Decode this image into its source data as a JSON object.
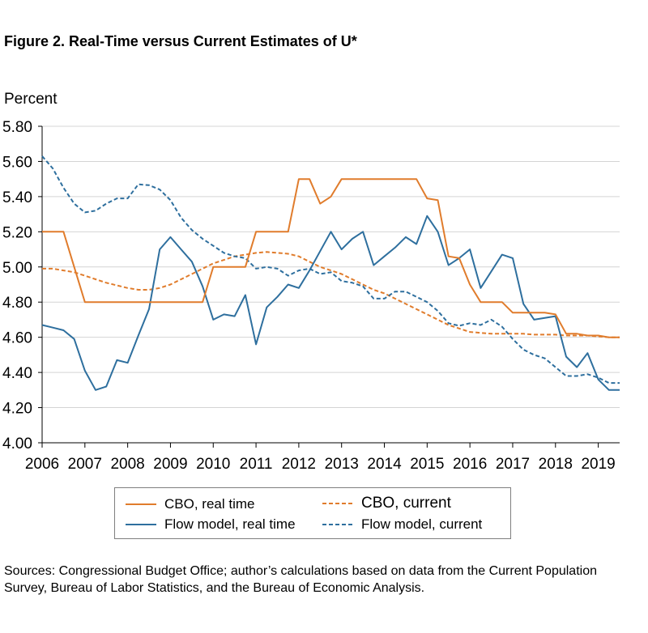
{
  "title": "Figure 2. Real-Time versus Current Estimates of U*",
  "sources": "Sources: Congressional Budget Office; author’s calculations based on data from the Current Population Survey, Bureau of Labor Statistics, and the Bureau of Economic Analysis.",
  "chart_data": {
    "type": "line",
    "ylabel": "Percent",
    "ylim": [
      4.0,
      5.8
    ],
    "xlim": [
      2006,
      2019.5
    ],
    "yticks": [
      "4.00",
      "4.20",
      "4.40",
      "4.60",
      "4.80",
      "5.00",
      "5.20",
      "5.40",
      "5.60",
      "5.80"
    ],
    "xticks": [
      "2006",
      "2007",
      "2008",
      "2009",
      "2010",
      "2011",
      "2012",
      "2013",
      "2014",
      "2015",
      "2016",
      "2017",
      "2018",
      "2019"
    ],
    "grid": "horizontal",
    "legend_position": "bottom",
    "series": [
      {
        "name": "CBO, real time",
        "color": "#e07c2c",
        "dash": "solid",
        "x": [
          2006.0,
          2006.25,
          2006.5,
          2006.75,
          2007.0,
          2007.25,
          2007.5,
          2007.75,
          2008.0,
          2008.25,
          2008.5,
          2008.75,
          2009.0,
          2009.25,
          2009.5,
          2009.75,
          2010.0,
          2010.25,
          2010.5,
          2010.75,
          2011.0,
          2011.25,
          2011.5,
          2011.75,
          2012.0,
          2012.25,
          2012.5,
          2012.75,
          2013.0,
          2013.25,
          2013.5,
          2013.75,
          2014.0,
          2014.25,
          2014.5,
          2014.75,
          2015.0,
          2015.25,
          2015.5,
          2015.75,
          2016.0,
          2016.25,
          2016.5,
          2016.75,
          2017.0,
          2017.25,
          2017.5,
          2017.75,
          2018.0,
          2018.25,
          2018.5,
          2018.75,
          2019.0,
          2019.25,
          2019.5
        ],
        "y": [
          5.2,
          5.2,
          5.2,
          5.0,
          4.8,
          4.8,
          4.8,
          4.8,
          4.8,
          4.8,
          4.8,
          4.8,
          4.8,
          4.8,
          4.8,
          4.8,
          5.0,
          5.0,
          5.0,
          5.0,
          5.2,
          5.2,
          5.2,
          5.2,
          5.5,
          5.5,
          5.36,
          5.4,
          5.5,
          5.5,
          5.5,
          5.5,
          5.5,
          5.5,
          5.5,
          5.5,
          5.39,
          5.38,
          5.06,
          5.05,
          4.9,
          4.8,
          4.8,
          4.8,
          4.74,
          4.74,
          4.74,
          4.74,
          4.73,
          4.62,
          4.62,
          4.61,
          4.61,
          4.6,
          4.6
        ]
      },
      {
        "name": "CBO, current",
        "color": "#e07c2c",
        "dash": "dashed",
        "x": [
          2006.0,
          2006.25,
          2006.5,
          2006.75,
          2007.0,
          2007.25,
          2007.5,
          2007.75,
          2008.0,
          2008.25,
          2008.5,
          2008.75,
          2009.0,
          2009.25,
          2009.5,
          2009.75,
          2010.0,
          2010.25,
          2010.5,
          2010.75,
          2011.0,
          2011.25,
          2011.5,
          2011.75,
          2012.0,
          2012.25,
          2012.5,
          2012.75,
          2013.0,
          2013.25,
          2013.5,
          2013.75,
          2014.0,
          2014.25,
          2014.5,
          2014.75,
          2015.0,
          2015.25,
          2015.5,
          2015.75,
          2016.0,
          2016.25,
          2016.5,
          2016.75,
          2017.0,
          2017.25,
          2017.5,
          2017.75,
          2018.0,
          2018.25,
          2018.5,
          2018.75,
          2019.0,
          2019.25,
          2019.5
        ],
        "y": [
          4.99,
          4.99,
          4.98,
          4.97,
          4.95,
          4.93,
          4.91,
          4.895,
          4.88,
          4.87,
          4.87,
          4.88,
          4.9,
          4.93,
          4.96,
          4.99,
          5.02,
          5.04,
          5.06,
          5.07,
          5.08,
          5.085,
          5.08,
          5.075,
          5.06,
          5.03,
          5.0,
          4.98,
          4.96,
          4.93,
          4.9,
          4.87,
          4.85,
          4.82,
          4.79,
          4.76,
          4.73,
          4.7,
          4.67,
          4.65,
          4.63,
          4.625,
          4.62,
          4.62,
          4.62,
          4.62,
          4.615,
          4.615,
          4.615,
          4.61,
          4.61,
          4.61,
          4.605,
          4.6,
          4.6
        ]
      },
      {
        "name": "Flow model, real time",
        "color": "#2e6f9e",
        "dash": "solid",
        "x": [
          2006.0,
          2006.25,
          2006.5,
          2006.75,
          2007.0,
          2007.25,
          2007.5,
          2007.75,
          2008.0,
          2008.25,
          2008.5,
          2008.75,
          2009.0,
          2009.25,
          2009.5,
          2009.75,
          2010.0,
          2010.25,
          2010.5,
          2010.75,
          2011.0,
          2011.25,
          2011.5,
          2011.75,
          2012.0,
          2012.25,
          2012.5,
          2012.75,
          2013.0,
          2013.25,
          2013.5,
          2013.75,
          2014.0,
          2014.25,
          2014.5,
          2014.75,
          2015.0,
          2015.25,
          2015.5,
          2015.75,
          2016.0,
          2016.25,
          2016.5,
          2016.75,
          2017.0,
          2017.25,
          2017.5,
          2017.75,
          2018.0,
          2018.25,
          2018.5,
          2018.75,
          2019.0,
          2019.25,
          2019.5
        ],
        "y": [
          4.67,
          4.655,
          4.64,
          4.59,
          4.41,
          4.3,
          4.32,
          4.47,
          4.455,
          4.61,
          4.76,
          5.1,
          5.17,
          5.1,
          5.03,
          4.89,
          4.7,
          4.73,
          4.72,
          4.84,
          4.56,
          4.77,
          4.83,
          4.9,
          4.88,
          4.98,
          5.09,
          5.2,
          5.1,
          5.16,
          5.2,
          5.01,
          5.06,
          5.11,
          5.17,
          5.13,
          5.29,
          5.2,
          5.01,
          5.05,
          5.1,
          4.88,
          4.975,
          5.07,
          5.05,
          4.79,
          4.7,
          4.71,
          4.72,
          4.49,
          4.43,
          4.51,
          4.36,
          4.3,
          4.3
        ]
      },
      {
        "name": "Flow model, current",
        "color": "#2e6f9e",
        "dash": "dashed",
        "x": [
          2006.0,
          2006.25,
          2006.5,
          2006.75,
          2007.0,
          2007.25,
          2007.5,
          2007.75,
          2008.0,
          2008.25,
          2008.5,
          2008.75,
          2009.0,
          2009.25,
          2009.5,
          2009.75,
          2010.0,
          2010.25,
          2010.5,
          2010.75,
          2011.0,
          2011.25,
          2011.5,
          2011.75,
          2012.0,
          2012.25,
          2012.5,
          2012.75,
          2013.0,
          2013.25,
          2013.5,
          2013.75,
          2014.0,
          2014.25,
          2014.5,
          2014.75,
          2015.0,
          2015.25,
          2015.5,
          2015.75,
          2016.0,
          2016.25,
          2016.5,
          2016.75,
          2017.0,
          2017.25,
          2017.5,
          2017.75,
          2018.0,
          2018.25,
          2018.5,
          2018.75,
          2019.0,
          2019.25,
          2019.5
        ],
        "y": [
          5.63,
          5.56,
          5.45,
          5.36,
          5.31,
          5.32,
          5.36,
          5.39,
          5.39,
          5.47,
          5.465,
          5.44,
          5.38,
          5.28,
          5.21,
          5.16,
          5.12,
          5.08,
          5.06,
          5.05,
          4.99,
          5.0,
          4.99,
          4.95,
          4.98,
          4.99,
          4.96,
          4.97,
          4.92,
          4.91,
          4.89,
          4.82,
          4.82,
          4.86,
          4.86,
          4.83,
          4.8,
          4.75,
          4.68,
          4.665,
          4.68,
          4.67,
          4.7,
          4.66,
          4.59,
          4.53,
          4.5,
          4.48,
          4.43,
          4.38,
          4.38,
          4.39,
          4.37,
          4.34,
          4.34
        ]
      }
    ]
  }
}
